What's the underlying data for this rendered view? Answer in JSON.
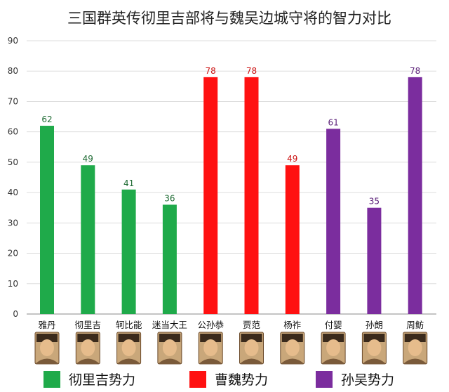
{
  "chart_data": {
    "type": "bar",
    "title": "三国群英传彻里吉部将与魏吴边城守将的智力对比",
    "xlabel": "",
    "ylabel": "",
    "ylim": [
      0,
      90
    ],
    "yticks": [
      0,
      10,
      20,
      30,
      40,
      50,
      60,
      70,
      80,
      90
    ],
    "grid": true,
    "legend_position": "bottom",
    "categories": [
      "雅丹",
      "彻里吉",
      "轲比能",
      "迷当大王",
      "公孙恭",
      "贾范",
      "杨祚",
      "付婴",
      "孙朗",
      "周鲂"
    ],
    "values": [
      62,
      49,
      41,
      36,
      78,
      78,
      49,
      61,
      35,
      78
    ],
    "groups": [
      "彻里吉势力",
      "彻里吉势力",
      "彻里吉势力",
      "彻里吉势力",
      "曹魏势力",
      "曹魏势力",
      "曹魏势力",
      "孙吴势力",
      "孙吴势力",
      "孙吴势力"
    ],
    "series": [
      {
        "name": "彻里吉势力",
        "color": "#1faa4a",
        "label_color": "#1e6b33"
      },
      {
        "name": "曹魏势力",
        "color": "#ff1111",
        "label_color": "#cc1111"
      },
      {
        "name": "孙吴势力",
        "color": "#7b2d9e",
        "label_color": "#5a1f78"
      }
    ],
    "portrait_icons": [
      "portrait-icon",
      "portrait-icon",
      "portrait-icon",
      "portrait-icon",
      "portrait-icon",
      "portrait-icon",
      "portrait-icon",
      "portrait-icon",
      "portrait-icon",
      "portrait-icon"
    ]
  }
}
